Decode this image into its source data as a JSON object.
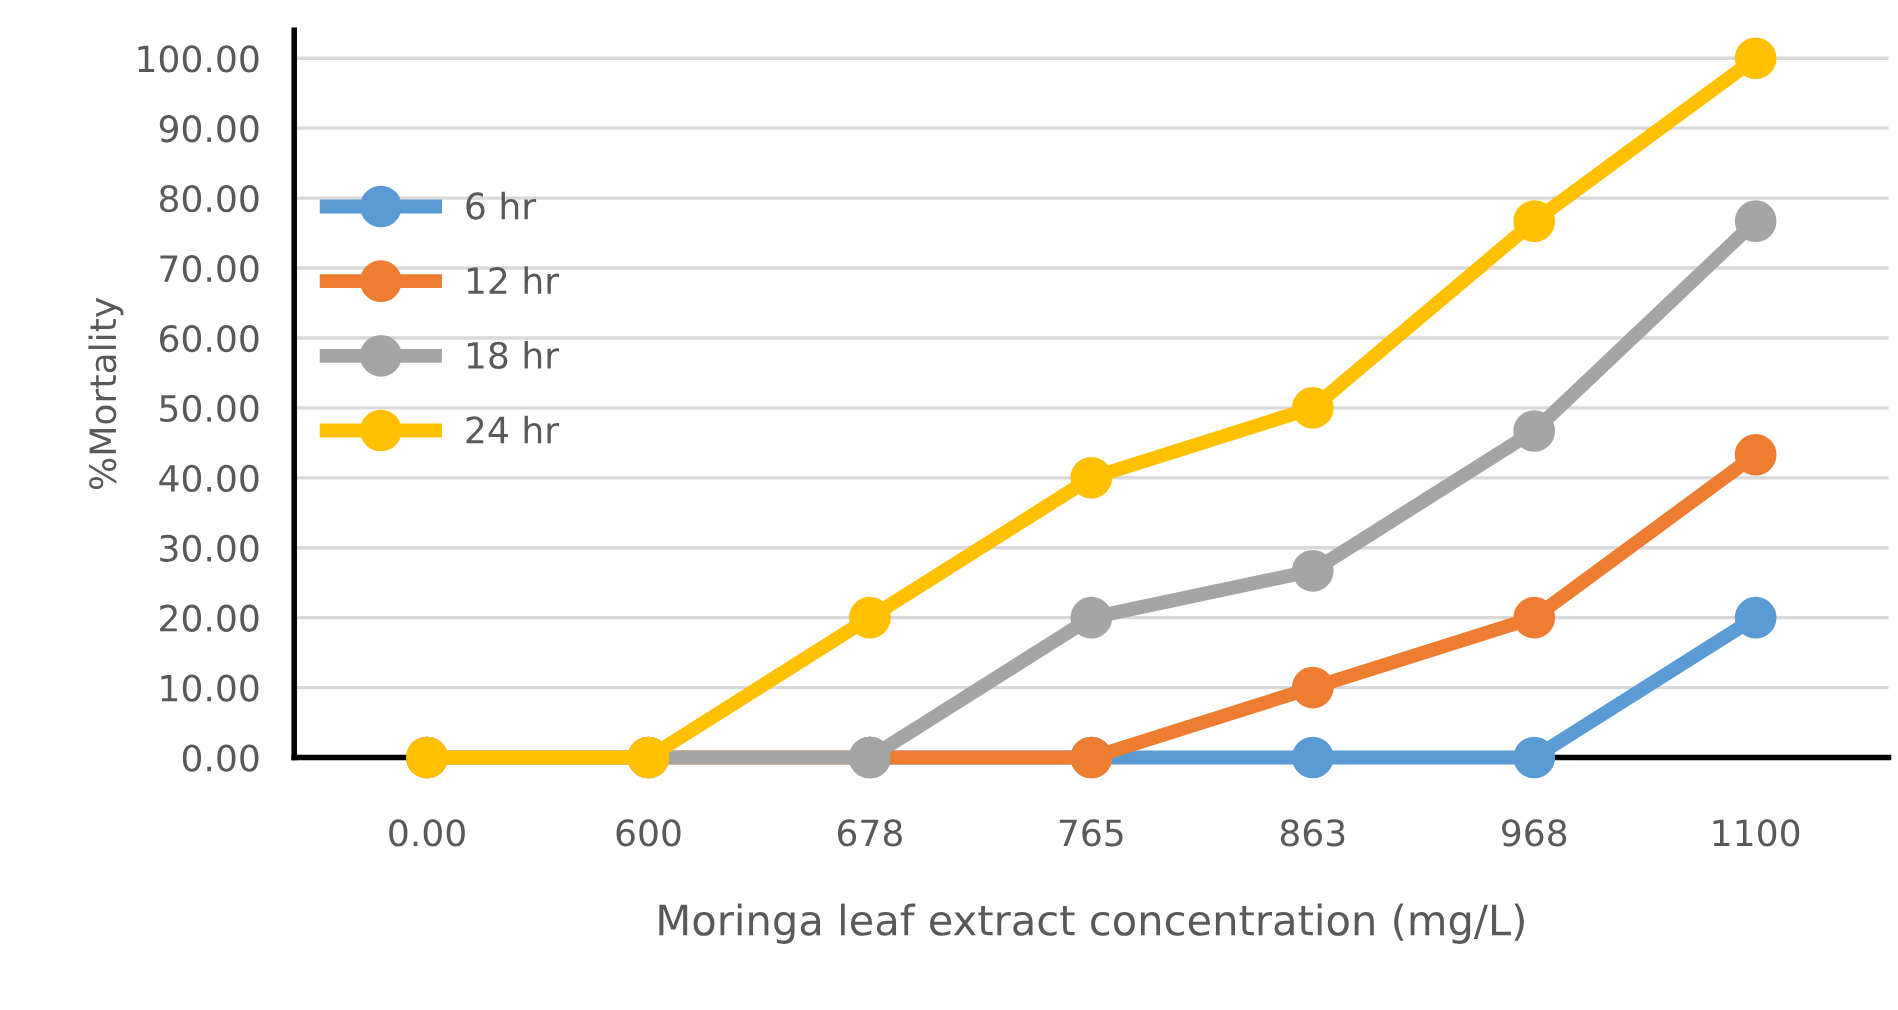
{
  "chart_data": {
    "type": "line",
    "xlabel": "Moringa leaf extract concentration (mg/L)",
    "ylabel": "%Mortality",
    "categories": [
      "0.00",
      "600",
      "678",
      "765",
      "863",
      "968",
      "1100"
    ],
    "series": [
      {
        "name": "6 hr",
        "color": "#5b9bd5",
        "values": [
          null,
          null,
          0,
          0,
          0,
          0,
          20
        ]
      },
      {
        "name": "12 hr",
        "color": "#ed7d31",
        "values": [
          0,
          0,
          0,
          0,
          10,
          20,
          43.3
        ]
      },
      {
        "name": "18 hr",
        "color": "#a5a5a5",
        "values": [
          0,
          0,
          0,
          20,
          26.7,
          46.7,
          76.7
        ]
      },
      {
        "name": "24 hr",
        "color": "#ffc000",
        "values": [
          0,
          0,
          20,
          40,
          50,
          76.7,
          100
        ]
      }
    ],
    "ylim": [
      0,
      104
    ],
    "yticks": [
      {
        "value": 0,
        "label": "0.00"
      },
      {
        "value": 10,
        "label": "10.00"
      },
      {
        "value": 20,
        "label": "20.00"
      },
      {
        "value": 30,
        "label": "30.00"
      },
      {
        "value": 40,
        "label": "40.00"
      },
      {
        "value": 50,
        "label": "50.00"
      },
      {
        "value": 60,
        "label": "60.00"
      },
      {
        "value": 70,
        "label": "70.00"
      },
      {
        "value": 80,
        "label": "80.00"
      },
      {
        "value": 90,
        "label": "90.00"
      },
      {
        "value": 100,
        "label": "100.00"
      }
    ],
    "grid": "y",
    "legend": "left",
    "marker": "circle",
    "line_style": "solid"
  }
}
